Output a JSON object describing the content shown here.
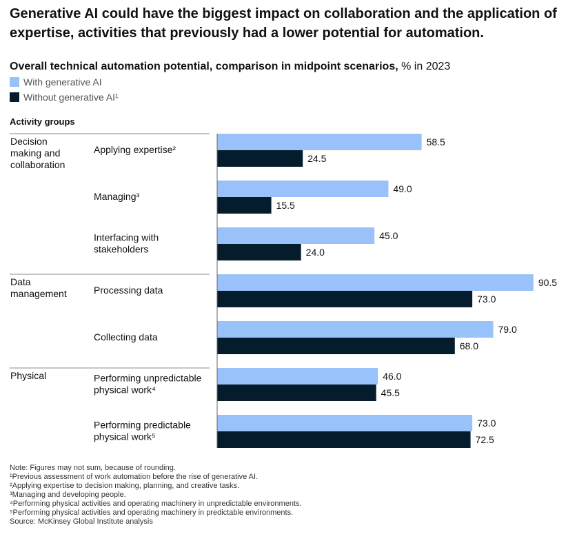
{
  "title": "Generative AI could have the biggest impact on collaboration and the application of expertise, activities that previously had a lower potential for automation.",
  "subtitle_bold": "Overall technical automation potential, comparison in midpoint scenarios,",
  "subtitle_regular": " % in 2023",
  "legend": [
    {
      "label": "With generative AI",
      "color": "#99c2fa"
    },
    {
      "label": "Without generative AI¹",
      "color": "#051c2c"
    }
  ],
  "activity_groups_header": "Activity groups",
  "chart_data": {
    "type": "bar",
    "orientation": "horizontal",
    "title": "Overall technical automation potential, comparison in midpoint scenarios, % in 2023",
    "xlim": [
      0,
      100
    ],
    "groups": [
      {
        "name": "Decision making and collaboration",
        "lines": [
          "Decision",
          "making and",
          "collaboration"
        ],
        "categories": [
          0,
          1,
          2
        ]
      },
      {
        "name": "Data management",
        "lines": [
          "Data",
          "management"
        ],
        "categories": [
          3,
          4
        ]
      },
      {
        "name": "Physical",
        "lines": [
          "Physical"
        ],
        "categories": [
          5,
          6
        ]
      }
    ],
    "categories": [
      {
        "lines": [
          "Applying expertise²"
        ]
      },
      {
        "lines": [
          "Managing³"
        ]
      },
      {
        "lines": [
          "Interfacing with",
          "stakeholders"
        ]
      },
      {
        "lines": [
          "Processing data"
        ]
      },
      {
        "lines": [
          "Collecting data"
        ]
      },
      {
        "lines": [
          "Performing unpredictable",
          "physical work⁴"
        ]
      },
      {
        "lines": [
          "Performing predictable",
          "physical work⁵"
        ]
      }
    ],
    "series": [
      {
        "name": "With generative AI",
        "color": "#99c2fa",
        "values": [
          58.5,
          49.0,
          45.0,
          90.5,
          79.0,
          46.0,
          73.0
        ],
        "labels": [
          "58.5",
          "49.0",
          "45.0",
          "90.5",
          "79.0",
          "46.0",
          "73.0"
        ]
      },
      {
        "name": "Without generative AI¹",
        "color": "#051c2c",
        "values": [
          24.5,
          15.5,
          24.0,
          73.0,
          68.0,
          45.5,
          72.5
        ],
        "labels": [
          "24.5",
          "15.5",
          "24.0",
          "73.0",
          "68.0",
          "45.5",
          "72.5"
        ]
      }
    ]
  },
  "footnotes": [
    "Note: Figures may not sum, because of rounding.",
    "¹Previous assessment of work automation before the rise of generative AI.",
    "²Applying expertise to decision making, planning, and creative tasks.",
    "³Managing and developing people.",
    "⁴Performing physical activities and operating machinery in unpredictable environments.",
    "⁵Performing physical activities and operating machinery in predictable environments.",
    "Source: McKinsey Global Institute analysis"
  ]
}
